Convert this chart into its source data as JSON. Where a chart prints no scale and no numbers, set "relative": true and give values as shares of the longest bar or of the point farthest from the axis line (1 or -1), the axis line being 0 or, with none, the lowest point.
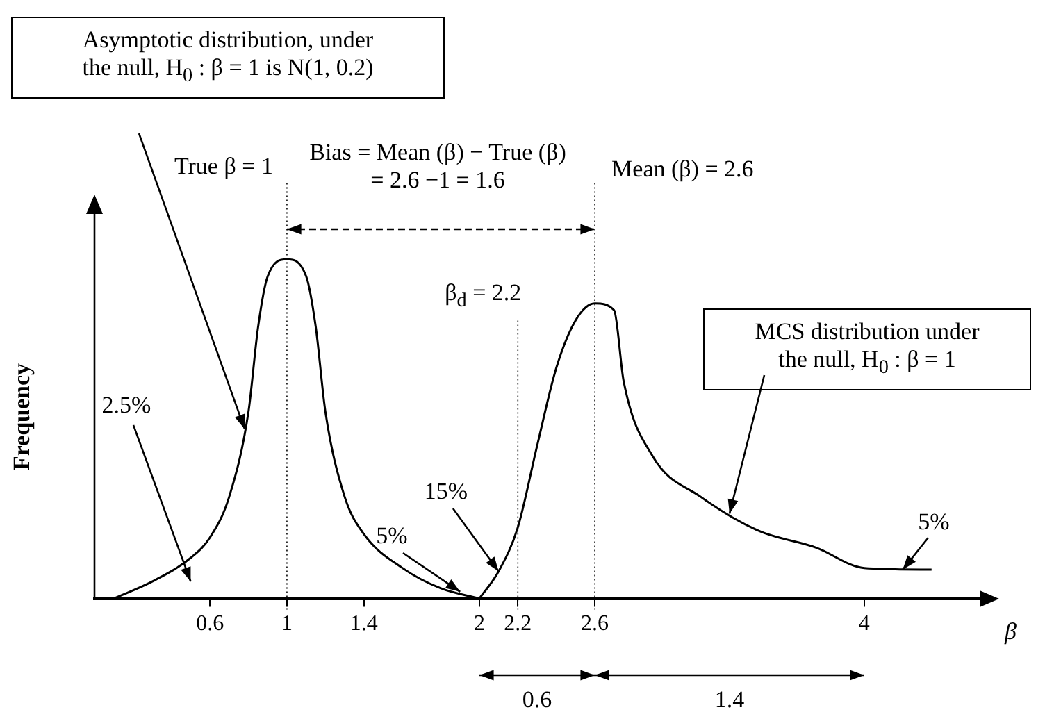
{
  "chart_data": {
    "type": "line",
    "relative": true,
    "ylabel": "Frequency",
    "xlabel": "β",
    "marker": "none",
    "legend": false,
    "xlim": [
      0,
      4.6
    ],
    "xticks": [
      0.6,
      1,
      1.4,
      2,
      2.2,
      2.6,
      4
    ],
    "series": [
      {
        "color": "#000000",
        "x": [
          0.1,
          0.3,
          0.5,
          0.6,
          0.7,
          0.8,
          0.85,
          0.9,
          1.0,
          1.1,
          1.15,
          1.2,
          1.3,
          1.4,
          1.6,
          1.8,
          2.0
        ],
        "values": [
          0,
          0.05,
          0.12,
          0.18,
          0.3,
          0.55,
          0.8,
          0.95,
          1,
          0.95,
          0.8,
          0.55,
          0.3,
          0.19,
          0.09,
          0.03,
          0
        ]
      },
      {
        "color": "#000000",
        "x": [
          2.0,
          2.1,
          2.2,
          2.3,
          2.4,
          2.5,
          2.6,
          2.7,
          2.75,
          2.9,
          3.15,
          3.45,
          3.75,
          4.0,
          4.35
        ],
        "values": [
          0,
          0.08,
          0.21,
          0.45,
          0.68,
          0.82,
          0.87,
          0.85,
          0.64,
          0.42,
          0.3,
          0.2,
          0.15,
          0.09,
          0.085
        ]
      }
    ],
    "ref_lines": [
      {
        "axis": "x",
        "value": 1,
        "label": "True β = 1",
        "line_style": "dotted"
      },
      {
        "axis": "x",
        "value": 2.2,
        "label": "β$_{d}$ = 2.2",
        "line_style": "dotted"
      },
      {
        "axis": "x",
        "value": 2.6,
        "label": "Mean (β) = 2.6",
        "line_style": "dotted"
      }
    ],
    "annotations": [
      "Asymptotic distribution, under\nthe null, H$_{0}$ : β = 1 is N(1, 0.2)",
      "MCS distribution under\nthe null, H$_{0}$ : β = 1",
      "Bias = Mean (β) − True (β)\n= 2.6 −1 = 1.6",
      "2.5%",
      "5%",
      "15%",
      "5%",
      "0.6",
      "1.4"
    ]
  }
}
